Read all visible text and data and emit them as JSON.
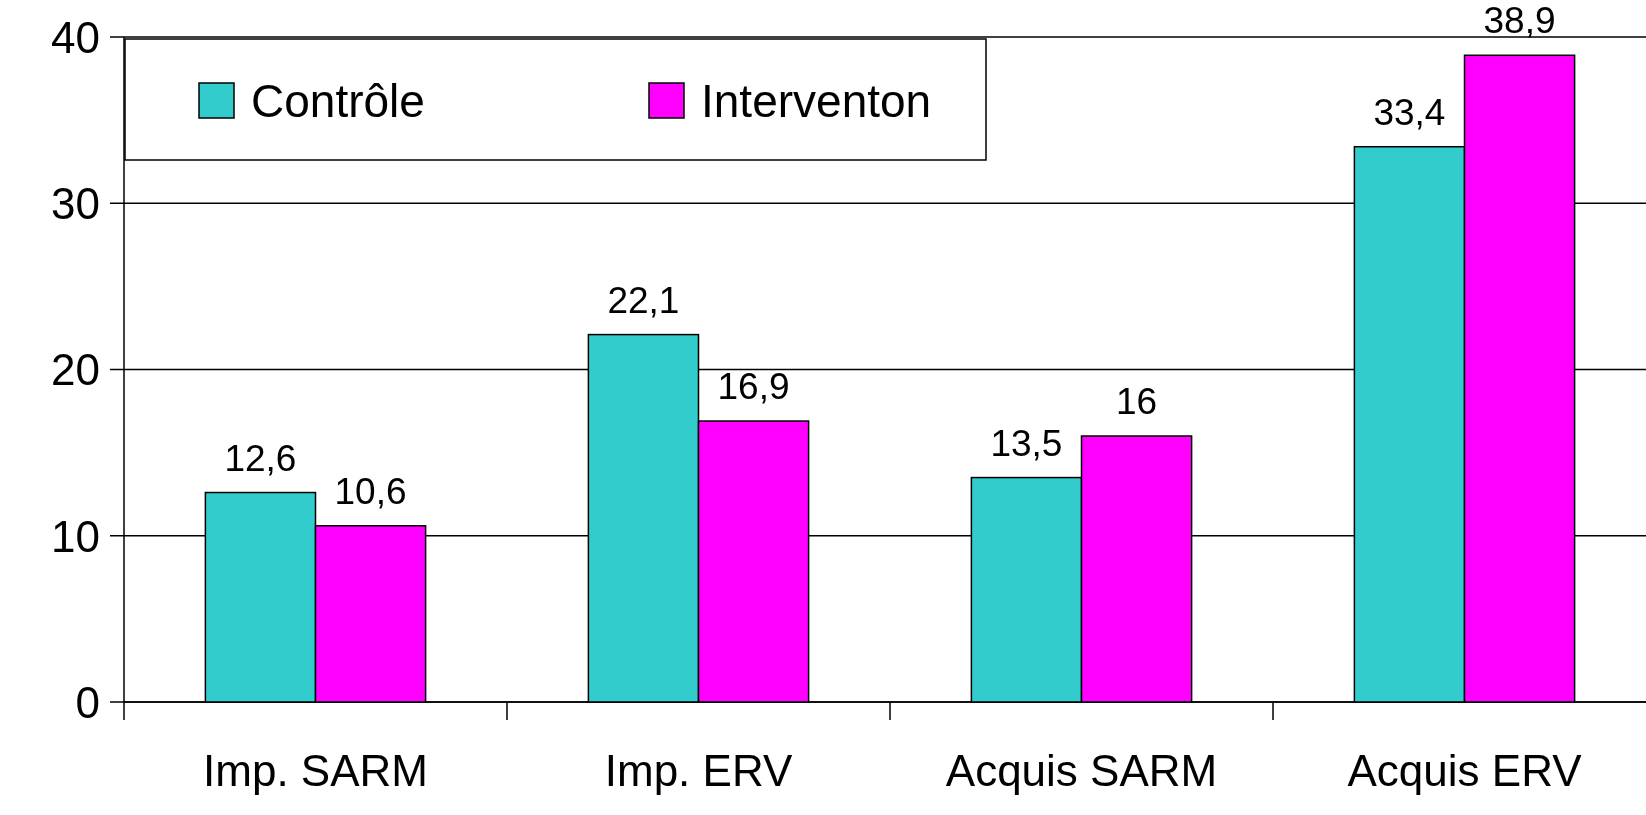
{
  "chart_data": {
    "type": "bar",
    "categories": [
      "Imp. SARM",
      "Imp. ERV",
      "Acquis SARM",
      "Acquis ERV"
    ],
    "series": [
      {
        "name": "Contrôle",
        "color": "#33cccc",
        "values": [
          12.6,
          22.1,
          13.5,
          33.4
        ],
        "value_labels": [
          "12,6",
          "22,1",
          "13,5",
          "33,4"
        ]
      },
      {
        "name": "Interventon",
        "color": "#ff00ff",
        "values": [
          10.6,
          16.9,
          16,
          38.9
        ],
        "value_labels": [
          "10,6",
          "16,9",
          "16",
          "38,9"
        ]
      }
    ],
    "ylim": [
      0,
      40
    ],
    "yticks": [
      0,
      10,
      20,
      30,
      40
    ],
    "grid": "y",
    "legend": "top left"
  }
}
